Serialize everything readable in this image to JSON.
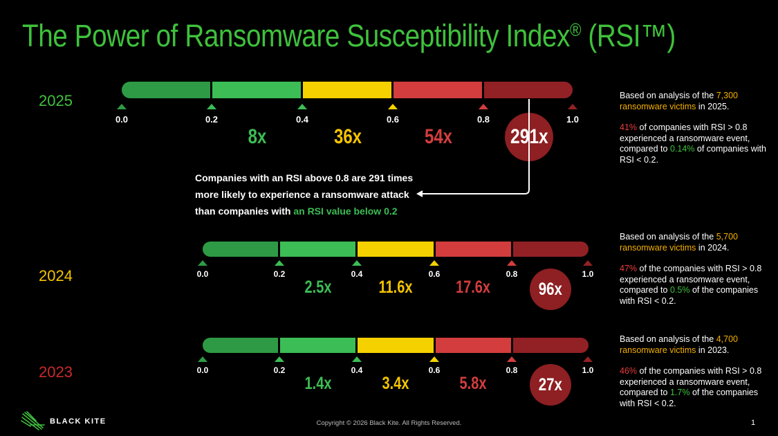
{
  "title": "The Power of Ransomware Susceptibility Index",
  "title_reg": "®",
  "title_rsi": " (RSI™)",
  "colors": {
    "title_green": "#3fc13c",
    "seg1": "#2e9a45",
    "seg2": "#3cbd55",
    "seg3": "#f5d100",
    "seg4": "#d33d3e",
    "seg5": "#912125",
    "mult_green": "#3cbd55",
    "mult_yellow": "#f5c400",
    "mult_red": "#d33d3e",
    "circle": "#8e1f22"
  },
  "scale_ticks": [
    "0.0",
    "0.2",
    "0.4",
    "0.6",
    "0.8",
    "1.0"
  ],
  "rows": [
    {
      "year": "2025",
      "year_color": "#3fc13c",
      "multipliers": [
        "8x",
        "36x",
        "54x"
      ],
      "highlight": "291x",
      "note": {
        "p1_pre": "Based on analysis of the ",
        "p1_hl": "7,300 ransomware victims",
        "p1_post": " in 2025.",
        "p2_pct": "41%",
        "p2_mid": " of companies with RSI > 0.8 experienced a ransomware event, compared to ",
        "p2_hl": " 0.14%",
        "p2_post": " of companies with RSI < 0.2."
      }
    },
    {
      "year": "2024",
      "year_color": "#f5c400",
      "multipliers": [
        "2.5x",
        "11.6x",
        "17.6x"
      ],
      "highlight": "96x",
      "note": {
        "p1_pre": "Based on analysis of the ",
        "p1_hl": "5,700 ransomware victims",
        "p1_post": " in 2024.",
        "p2_pct": "47%",
        "p2_mid": " of the companies with RSI > 0.8 experienced a ransomware event, compared to ",
        "p2_hl": "0.5%",
        "p2_post": " of the companies with RSI < 0.2."
      }
    },
    {
      "year": "2023",
      "year_color": "#c92a2a",
      "multipliers": [
        "1.4x",
        "3.4x",
        "5.8x"
      ],
      "highlight": "27x",
      "note": {
        "p1_pre": "Based on analysis of the ",
        "p1_hl": "4,700 ransomware victims",
        "p1_post": " in 2023.",
        "p2_pct": "46%",
        "p2_mid": " of the companies with RSI > 0.8 experienced a ransomware event, compared to ",
        "p2_hl": "1.7%",
        "p2_post": " of the companies with RSI < 0.2."
      }
    }
  ],
  "callout": {
    "line1": "Companies with an RSI above 0.8 are 291 times",
    "line2": "more likely to experience a ransomware attack",
    "line3_pre": "than companies with ",
    "line3_hl": "an RSI value below 0.2"
  },
  "logo_text": "BLACK KITE",
  "footer": "Copyright © 2026 Black Kite. All Rights Reserved.",
  "page_number": "1"
}
